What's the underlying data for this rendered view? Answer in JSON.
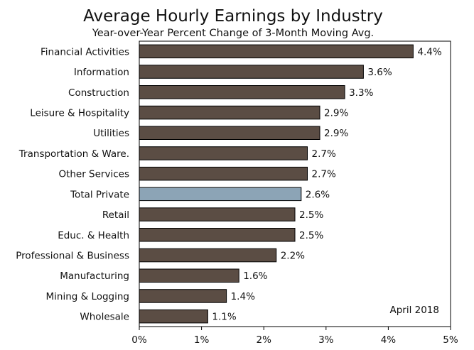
{
  "chart_data": {
    "type": "bar",
    "orientation": "horizontal",
    "title": "Average Hourly Earnings by Industry",
    "subtitle": "Year-over-Year Percent Change of 3-Month Moving Avg.",
    "categories": [
      "Financial Activities",
      "Information",
      "Construction",
      "Leisure & Hospitality",
      "Utilities",
      "Transportation & Ware.",
      "Other Services",
      "Total Private",
      "Retail",
      "Educ. & Health",
      "Professional & Business",
      "Manufacturing",
      "Mining & Logging",
      "Wholesale"
    ],
    "values": [
      4.4,
      3.6,
      3.3,
      2.9,
      2.9,
      2.7,
      2.7,
      2.6,
      2.5,
      2.5,
      2.2,
      1.6,
      1.4,
      1.1
    ],
    "value_labels": [
      "4.4%",
      "3.6%",
      "3.3%",
      "2.9%",
      "2.9%",
      "2.7%",
      "2.7%",
      "2.6%",
      "2.5%",
      "2.5%",
      "2.2%",
      "1.6%",
      "1.4%",
      "1.1%"
    ],
    "highlight_category": "Total Private",
    "xlim": [
      0,
      5
    ],
    "xticks": [
      0,
      1,
      2,
      3,
      4,
      5
    ],
    "xtick_labels": [
      "0%",
      "1%",
      "2%",
      "3%",
      "4%",
      "5%"
    ],
    "xlabel": "",
    "ylabel": "",
    "grid": false,
    "annotation": "April 2018",
    "colors": {
      "bar": "#5b4d44",
      "highlight": "#8ca4b6",
      "axis": "#000000"
    }
  }
}
